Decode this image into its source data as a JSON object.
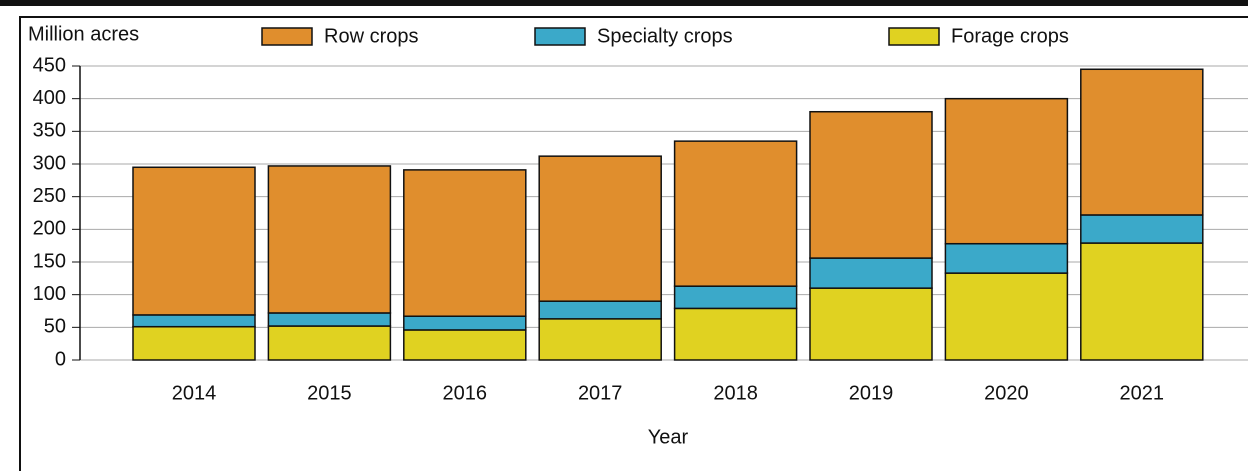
{
  "chart_data": {
    "type": "bar",
    "stacked": true,
    "y_label": "Million acres",
    "x_label": "Year",
    "categories": [
      "2014",
      "2015",
      "2016",
      "2017",
      "2018",
      "2019",
      "2020",
      "2021"
    ],
    "series": [
      {
        "name": "Forage crops",
        "color": "#e0d221",
        "values": [
          51,
          52,
          46,
          63,
          79,
          110,
          133,
          179
        ]
      },
      {
        "name": "Specialty crops",
        "color": "#3ba9c9",
        "values": [
          18,
          20,
          21,
          27,
          34,
          46,
          45,
          43
        ]
      },
      {
        "name": "Row crops",
        "color": "#e08e2d",
        "values": [
          226,
          225,
          224,
          222,
          222,
          224,
          222,
          223
        ]
      }
    ],
    "legend_order": [
      2,
      1,
      0
    ],
    "ylim": [
      0,
      450
    ],
    "yticks": [
      0,
      50,
      100,
      150,
      200,
      250,
      300,
      350,
      400,
      450
    ],
    "grid": true
  }
}
